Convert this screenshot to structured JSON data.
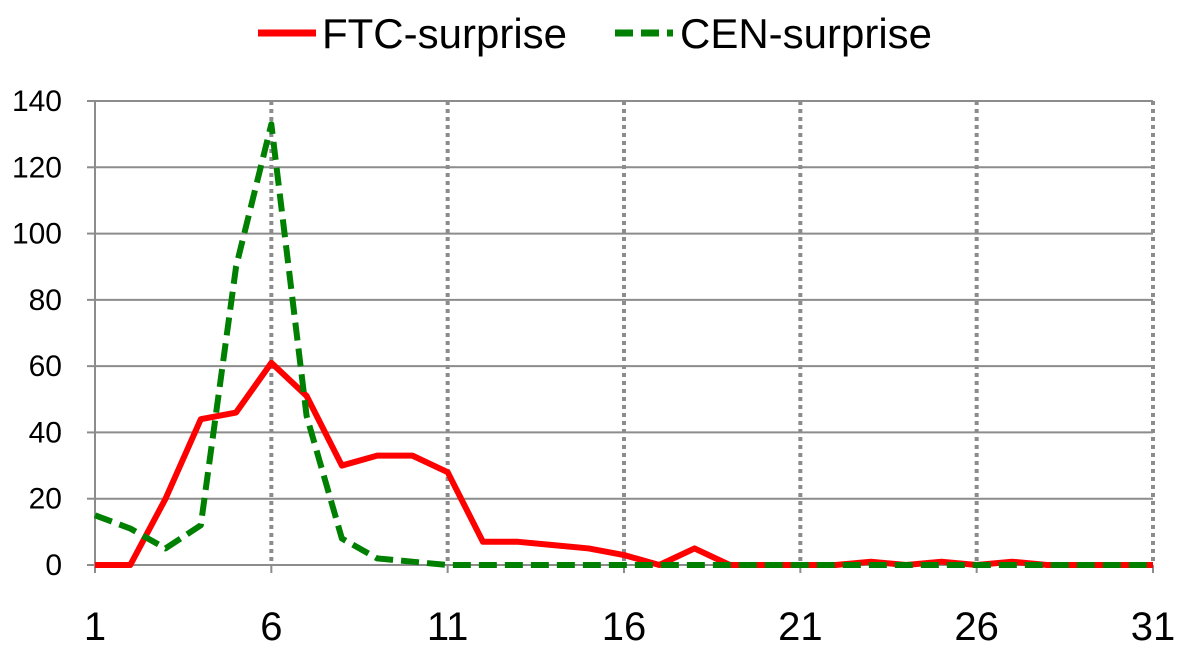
{
  "chart_data": {
    "type": "line",
    "title": "",
    "xlabel": "",
    "ylabel": "",
    "x": [
      1,
      2,
      3,
      4,
      5,
      6,
      7,
      8,
      9,
      10,
      11,
      12,
      13,
      14,
      15,
      16,
      17,
      18,
      19,
      20,
      21,
      22,
      23,
      24,
      25,
      26,
      27,
      28,
      29,
      30,
      31
    ],
    "x_ticks": [
      1,
      6,
      11,
      16,
      21,
      26,
      31
    ],
    "x_tick_labels": [
      "1",
      "6",
      "11",
      "16",
      "21",
      "26",
      "31"
    ],
    "xlim": [
      1,
      31
    ],
    "ylim": [
      0,
      140
    ],
    "y_ticks": [
      0,
      20,
      40,
      60,
      80,
      100,
      120,
      140
    ],
    "y_tick_labels": [
      "0",
      "20",
      "40",
      "60",
      "80",
      "100",
      "120",
      "140"
    ],
    "grid": {
      "horizontal": true,
      "vertical_dotted_at": [
        6,
        11,
        16,
        21,
        26,
        31
      ]
    },
    "legend_position": "top-center",
    "series": [
      {
        "name": "FTC-surprise",
        "color": "#ff0000",
        "style": "solid",
        "values": [
          0,
          0,
          20,
          44,
          46,
          61,
          51,
          30,
          33,
          33,
          28,
          7,
          7,
          6,
          5,
          3,
          0,
          5,
          0,
          0,
          0,
          0,
          1,
          0,
          1,
          0,
          1,
          0,
          0,
          0,
          0
        ]
      },
      {
        "name": "CEN-surprise",
        "color": "#008000",
        "style": "dashed",
        "values": [
          15,
          11,
          5,
          12,
          90,
          133,
          45,
          8,
          2,
          1,
          0,
          0,
          0,
          0,
          0,
          0,
          0,
          0,
          0,
          0,
          0,
          0,
          0,
          0,
          0,
          0,
          0,
          0,
          0,
          0,
          0
        ]
      }
    ]
  }
}
